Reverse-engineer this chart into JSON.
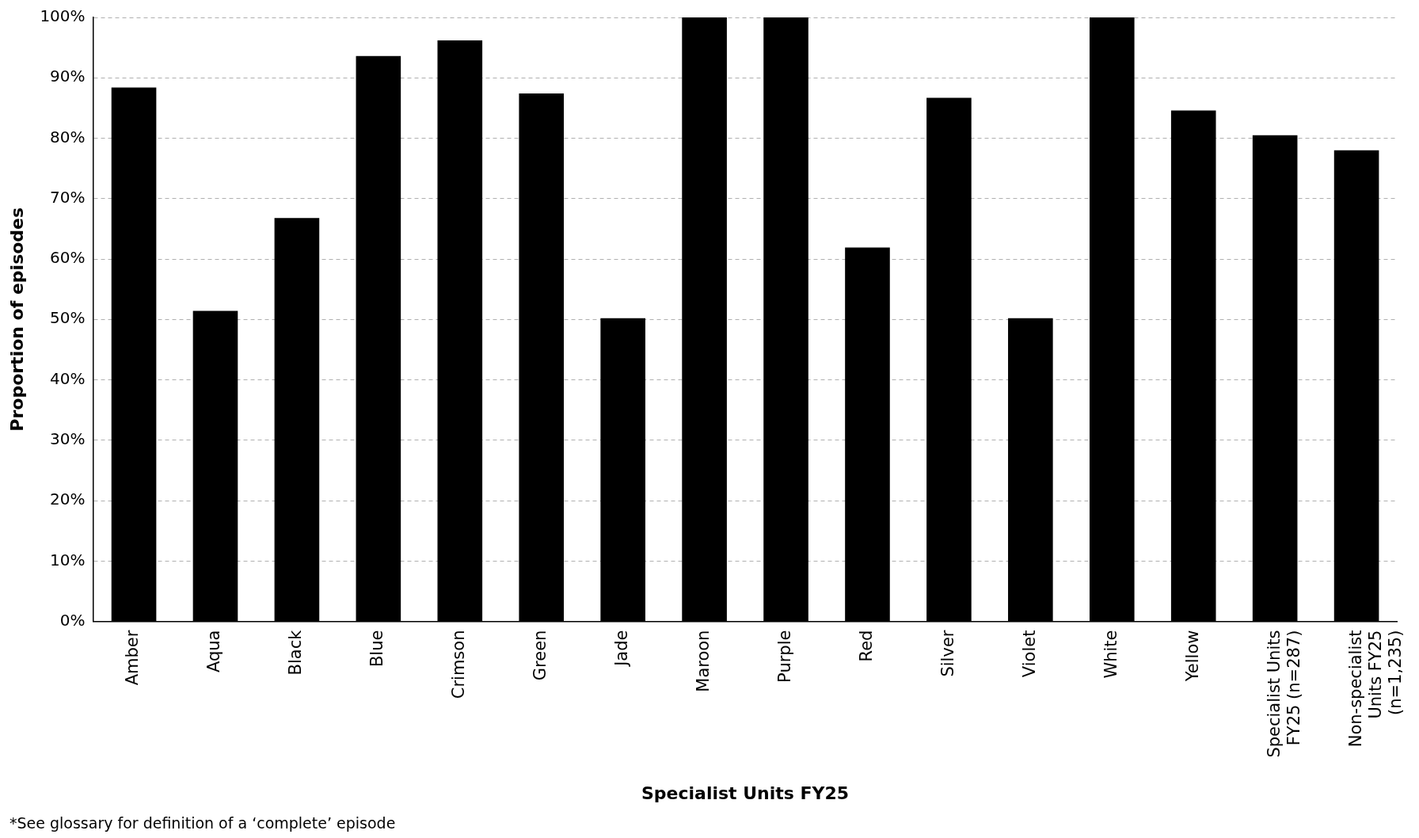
{
  "chart_data": {
    "type": "bar",
    "xlabel": "Specialist Units FY25",
    "ylabel": "Proportion of episodes",
    "categories": [
      "Amber",
      "Aqua",
      "Black",
      "Blue",
      "Crimson",
      "Green",
      "Jade",
      "Maroon",
      "Purple",
      "Red",
      "Silver",
      "Violet",
      "White",
      "Yellow",
      "Specialist Units FY25 (n=287)",
      "Non-specialist Units FY25 (n=1,235)"
    ],
    "series": [
      {
        "color": "#000000",
        "values": [
          88.4,
          51.4,
          66.8,
          93.6,
          96.2,
          87.4,
          50.2,
          100,
          100,
          61.9,
          86.7,
          50.2,
          100,
          84.6,
          80.5,
          78.0
        ]
      }
    ],
    "ylim": [
      0,
      100
    ],
    "yticks": [
      {
        "value": 0,
        "label": "0%"
      },
      {
        "value": 10,
        "label": "10%"
      },
      {
        "value": 20,
        "label": "20%"
      },
      {
        "value": 30,
        "label": "30%"
      },
      {
        "value": 40,
        "label": "40%"
      },
      {
        "value": 50,
        "label": "50%"
      },
      {
        "value": 60,
        "label": "60%"
      },
      {
        "value": 70,
        "label": "70%"
      },
      {
        "value": 80,
        "label": "80%"
      },
      {
        "value": 90,
        "label": "90%"
      },
      {
        "value": 100,
        "label": "100%"
      }
    ],
    "grid": "y",
    "legend": false,
    "annotations": [
      "*See glossary for definition of a ‘complete’ episode"
    ]
  }
}
